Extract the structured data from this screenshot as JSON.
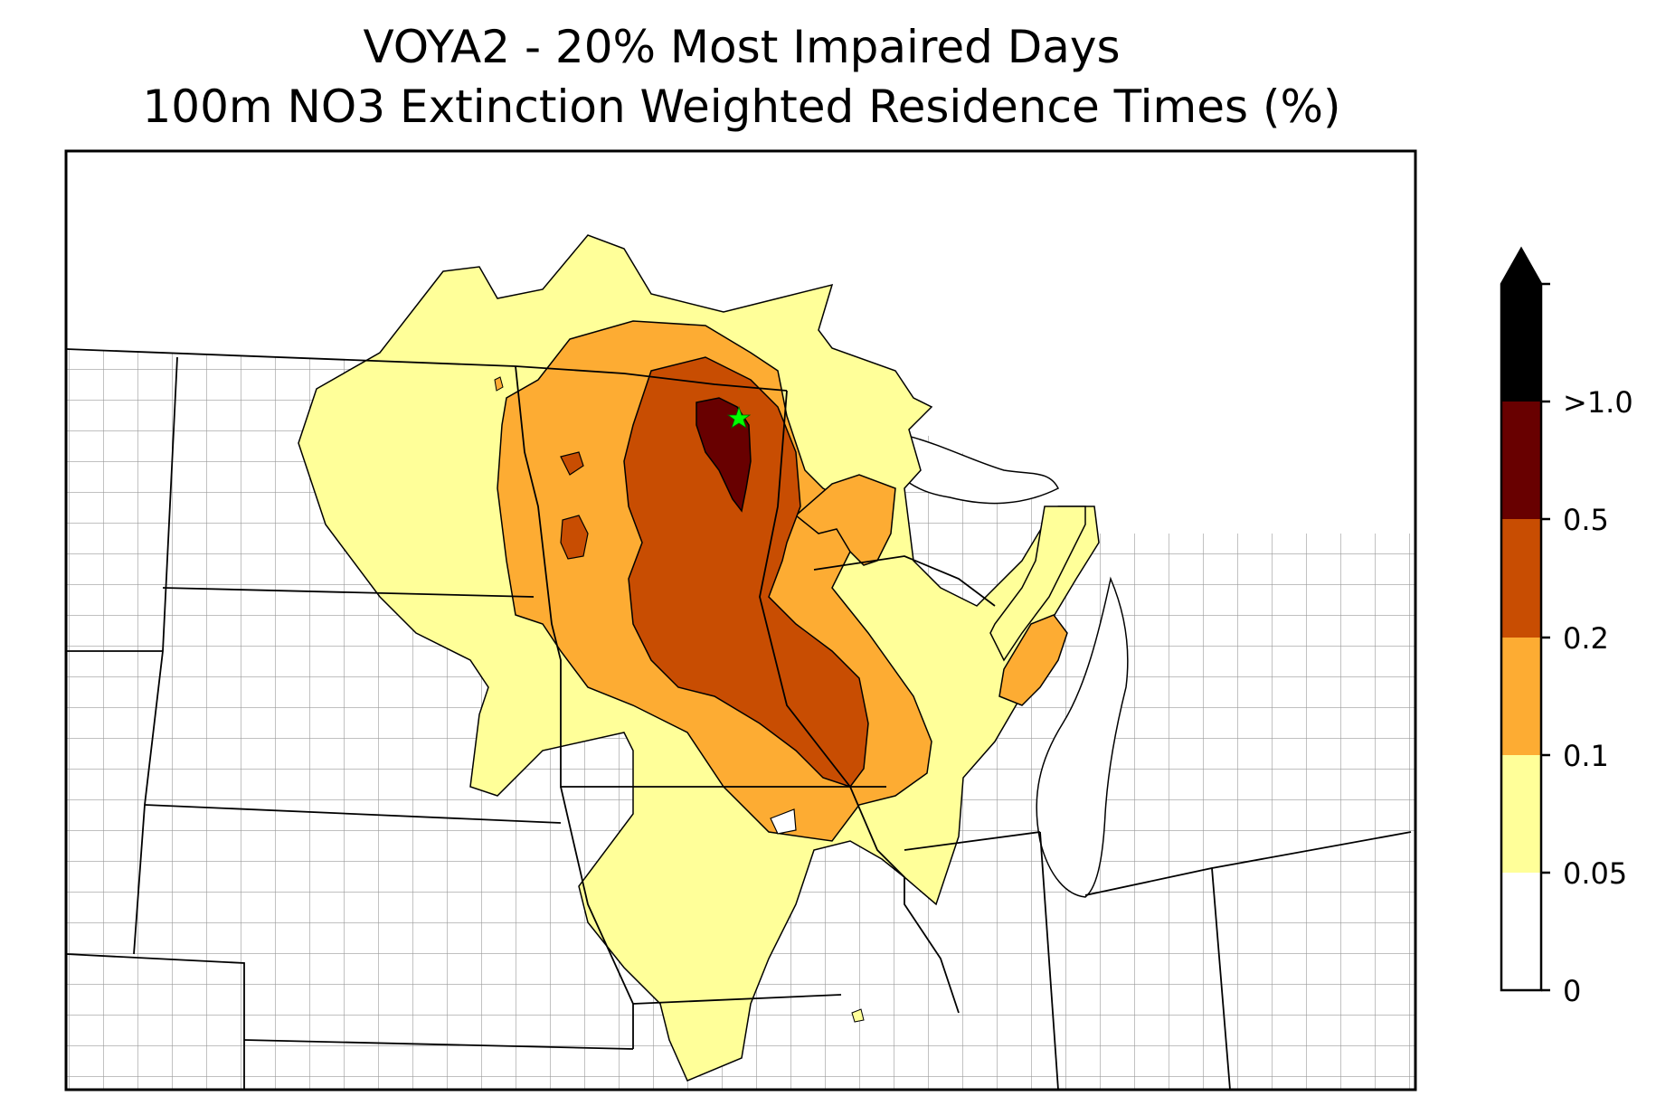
{
  "title": {
    "line1": "VOYA2 - 20% Most Impaired Days",
    "line2": "100m NO3 Extinction Weighted Residence Times (%)"
  },
  "colors": {
    "band_0_005": "#ffffff",
    "band_005_01": "#ffff99",
    "band_01_02": "#fdac33",
    "band_02_05": "#c84d02",
    "band_05_10": "#680000",
    "band_gt_10": "#000000",
    "state_border": "#000000",
    "county_border": "#9a9a9a",
    "site_marker": "#00ff00"
  },
  "colorbar": {
    "levels": [
      "0",
      "0.05",
      "0.1",
      "0.2",
      "0.5",
      ">1.0"
    ],
    "extend": "max"
  },
  "site": {
    "name": "VOYA2",
    "marker": "star-icon"
  }
}
